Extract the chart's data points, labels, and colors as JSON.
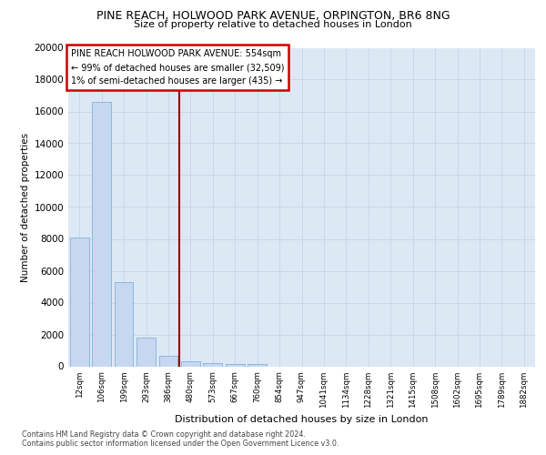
{
  "title1": "PINE REACH, HOLWOOD PARK AVENUE, ORPINGTON, BR6 8NG",
  "title2": "Size of property relative to detached houses in London",
  "xlabel": "Distribution of detached houses by size in London",
  "ylabel": "Number of detached properties",
  "categories": [
    "12sqm",
    "106sqm",
    "199sqm",
    "293sqm",
    "386sqm",
    "480sqm",
    "573sqm",
    "667sqm",
    "760sqm",
    "854sqm",
    "947sqm",
    "1041sqm",
    "1134sqm",
    "1228sqm",
    "1321sqm",
    "1415sqm",
    "1508sqm",
    "1602sqm",
    "1695sqm",
    "1789sqm",
    "1882sqm"
  ],
  "values": [
    8100,
    16600,
    5300,
    1800,
    650,
    300,
    200,
    150,
    120,
    0,
    0,
    0,
    0,
    0,
    0,
    0,
    0,
    0,
    0,
    0,
    0
  ],
  "bar_color": "#c5d8f0",
  "bar_edge_color": "#7fb3d9",
  "vline_color": "#990000",
  "vline_pos": 4.5,
  "annotation_text": "PINE REACH HOLWOOD PARK AVENUE: 554sqm\n← 99% of detached houses are smaller (32,509)\n1% of semi-detached houses are larger (435) →",
  "annotation_box_color": "#ffffff",
  "annotation_box_edge": "#cc0000",
  "ylim": [
    0,
    20000
  ],
  "yticks": [
    0,
    2000,
    4000,
    6000,
    8000,
    10000,
    12000,
    14000,
    16000,
    18000,
    20000
  ],
  "grid_color": "#c8d4e8",
  "background_color": "#dde8f5",
  "footer1": "Contains HM Land Registry data © Crown copyright and database right 2024.",
  "footer2": "Contains public sector information licensed under the Open Government Licence v3.0."
}
